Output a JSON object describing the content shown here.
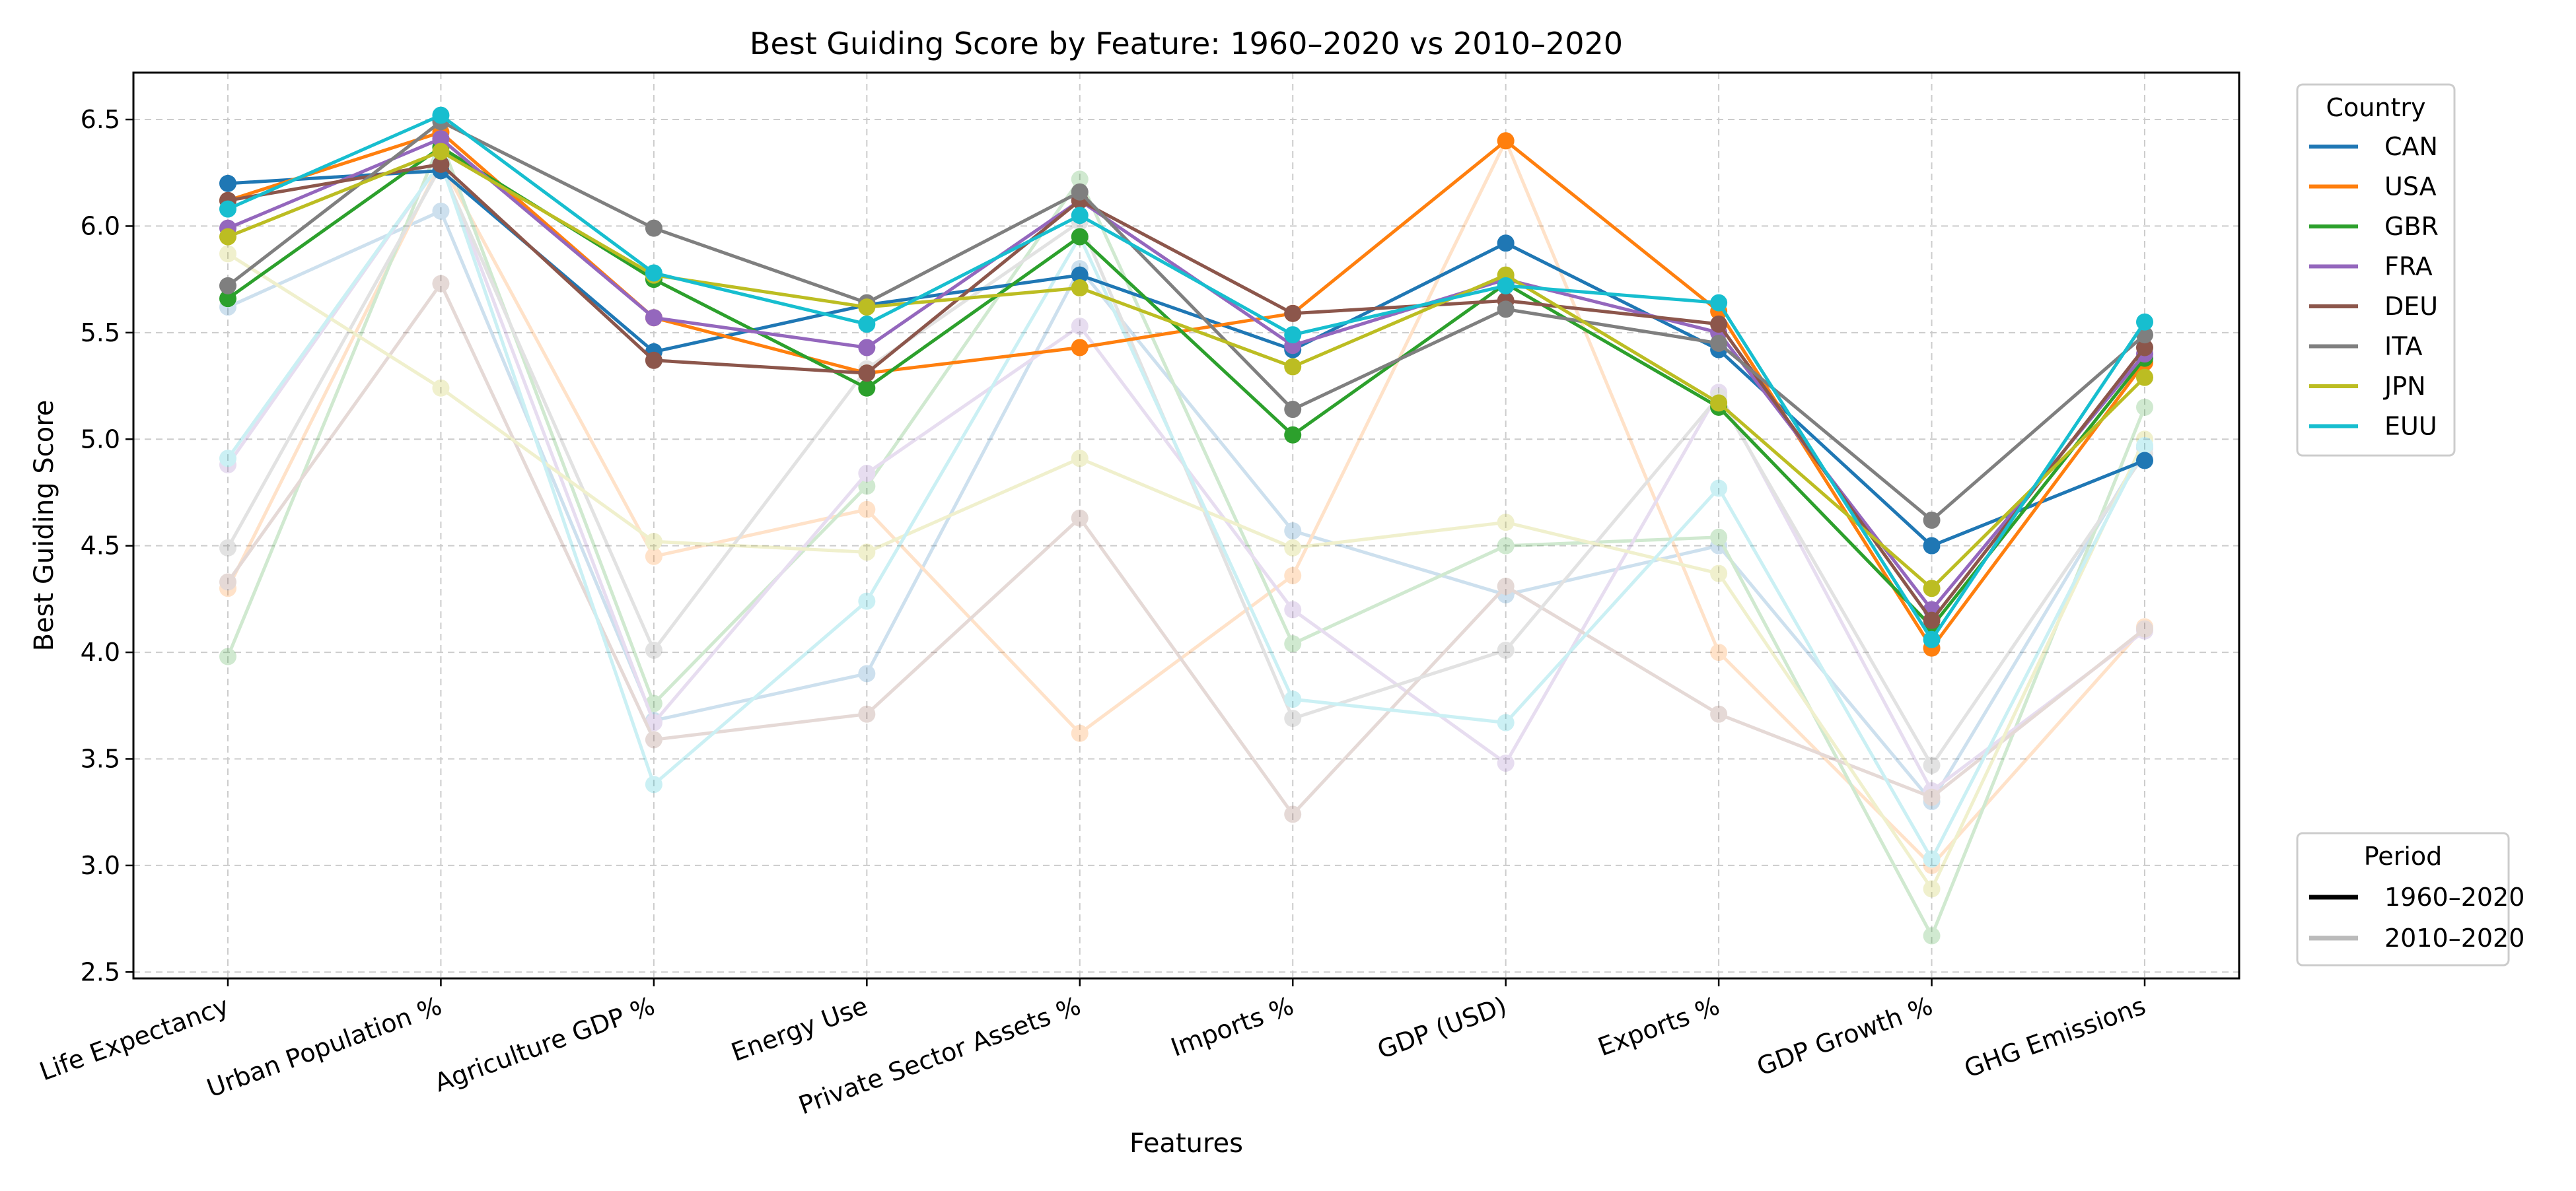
{
  "chart_data": {
    "type": "line",
    "title": "Best Guiding Score by Feature: 1960–2020 vs 2010–2020",
    "xlabel": "Features",
    "ylabel": "Best Guiding Score",
    "categories": [
      "Life Expectancy",
      "Urban Population %",
      "Agriculture GDP %",
      "Energy Use",
      "Private Sector Assets %",
      "Imports %",
      "GDP (USD)",
      "Exports %",
      "GDP Growth %",
      "GHG Emissions"
    ],
    "ylim": [
      2.47,
      6.72
    ],
    "yticks": [
      "2.5",
      "3.0",
      "3.5",
      "4.0",
      "4.5",
      "5.0",
      "5.5",
      "6.0",
      "6.5"
    ],
    "grid": true,
    "country_legend": {
      "title": "Country",
      "placement": "upper right, outside plot"
    },
    "period_legend": {
      "title": "Period",
      "placement": "lower right, outside plot",
      "items": [
        {
          "label": "1960–2020",
          "color": "#000000",
          "opacity": 1.0
        },
        {
          "label": "2010–2020",
          "color": "#bbbbbb",
          "opacity": 1.0
        }
      ]
    },
    "periods": [
      {
        "name": "2010–2020",
        "opacity": 0.22,
        "series": [
          {
            "name": "CAN",
            "color": "#1f77b4",
            "values": [
              5.62,
              6.07,
              3.68,
              3.9,
              5.8,
              4.57,
              4.27,
              4.5,
              3.3,
              4.96
            ]
          },
          {
            "name": "USA",
            "color": "#ff7f0e",
            "values": [
              4.3,
              6.3,
              4.45,
              4.67,
              3.62,
              4.36,
              6.4,
              4.0,
              3.0,
              4.12
            ]
          },
          {
            "name": "GBR",
            "color": "#2ca02c",
            "values": [
              3.98,
              6.4,
              3.76,
              4.78,
              6.22,
              4.04,
              4.5,
              4.54,
              2.67,
              5.15
            ]
          },
          {
            "name": "FRA",
            "color": "#9467bd",
            "values": [
              4.88,
              6.3,
              3.67,
              4.84,
              5.53,
              4.2,
              3.48,
              5.22,
              3.35,
              4.1
            ]
          },
          {
            "name": "DEU",
            "color": "#8c564b",
            "values": [
              4.33,
              5.73,
              3.59,
              3.71,
              4.63,
              3.24,
              4.31,
              3.71,
              3.32,
              4.11
            ]
          },
          {
            "name": "ITA",
            "color": "#7f7f7f",
            "values": [
              4.49,
              6.28,
              4.01,
              5.33,
              6.02,
              3.69,
              4.01,
              5.2,
              3.47,
              4.93
            ]
          },
          {
            "name": "JPN",
            "color": "#bcbd22",
            "values": [
              5.87,
              5.24,
              4.52,
              4.47,
              4.91,
              4.49,
              4.61,
              4.37,
              2.89,
              5.0
            ]
          },
          {
            "name": "EUU",
            "color": "#17becf",
            "values": [
              4.91,
              6.3,
              3.38,
              4.24,
              5.95,
              3.78,
              3.67,
              4.77,
              3.03,
              4.97
            ]
          }
        ]
      },
      {
        "name": "1960–2020",
        "opacity": 1.0,
        "series": [
          {
            "name": "CAN",
            "color": "#1f77b4",
            "values": [
              6.2,
              6.26,
              5.41,
              5.63,
              5.77,
              5.42,
              5.92,
              5.42,
              4.5,
              4.9
            ]
          },
          {
            "name": "USA",
            "color": "#ff7f0e",
            "values": [
              6.12,
              6.44,
              5.57,
              5.31,
              5.43,
              5.59,
              6.4,
              5.6,
              4.02,
              5.36
            ]
          },
          {
            "name": "GBR",
            "color": "#2ca02c",
            "values": [
              5.66,
              6.37,
              5.75,
              5.24,
              5.95,
              5.02,
              5.73,
              5.15,
              4.12,
              5.38
            ]
          },
          {
            "name": "FRA",
            "color": "#9467bd",
            "values": [
              5.99,
              6.41,
              5.57,
              5.43,
              6.12,
              5.44,
              5.75,
              5.5,
              4.2,
              5.4
            ]
          },
          {
            "name": "DEU",
            "color": "#8c564b",
            "values": [
              6.12,
              6.29,
              5.37,
              5.31,
              6.12,
              5.59,
              5.65,
              5.54,
              4.15,
              5.43
            ]
          },
          {
            "name": "ITA",
            "color": "#7f7f7f",
            "values": [
              5.72,
              6.49,
              5.99,
              5.64,
              6.16,
              5.14,
              5.61,
              5.45,
              4.62,
              5.49
            ]
          },
          {
            "name": "JPN",
            "color": "#bcbd22",
            "values": [
              5.95,
              6.35,
              5.77,
              5.62,
              5.71,
              5.34,
              5.77,
              5.17,
              4.3,
              5.29
            ]
          },
          {
            "name": "EUU",
            "color": "#17becf",
            "values": [
              6.08,
              6.52,
              5.78,
              5.54,
              6.05,
              5.49,
              5.72,
              5.64,
              4.06,
              5.55
            ]
          }
        ]
      }
    ]
  }
}
